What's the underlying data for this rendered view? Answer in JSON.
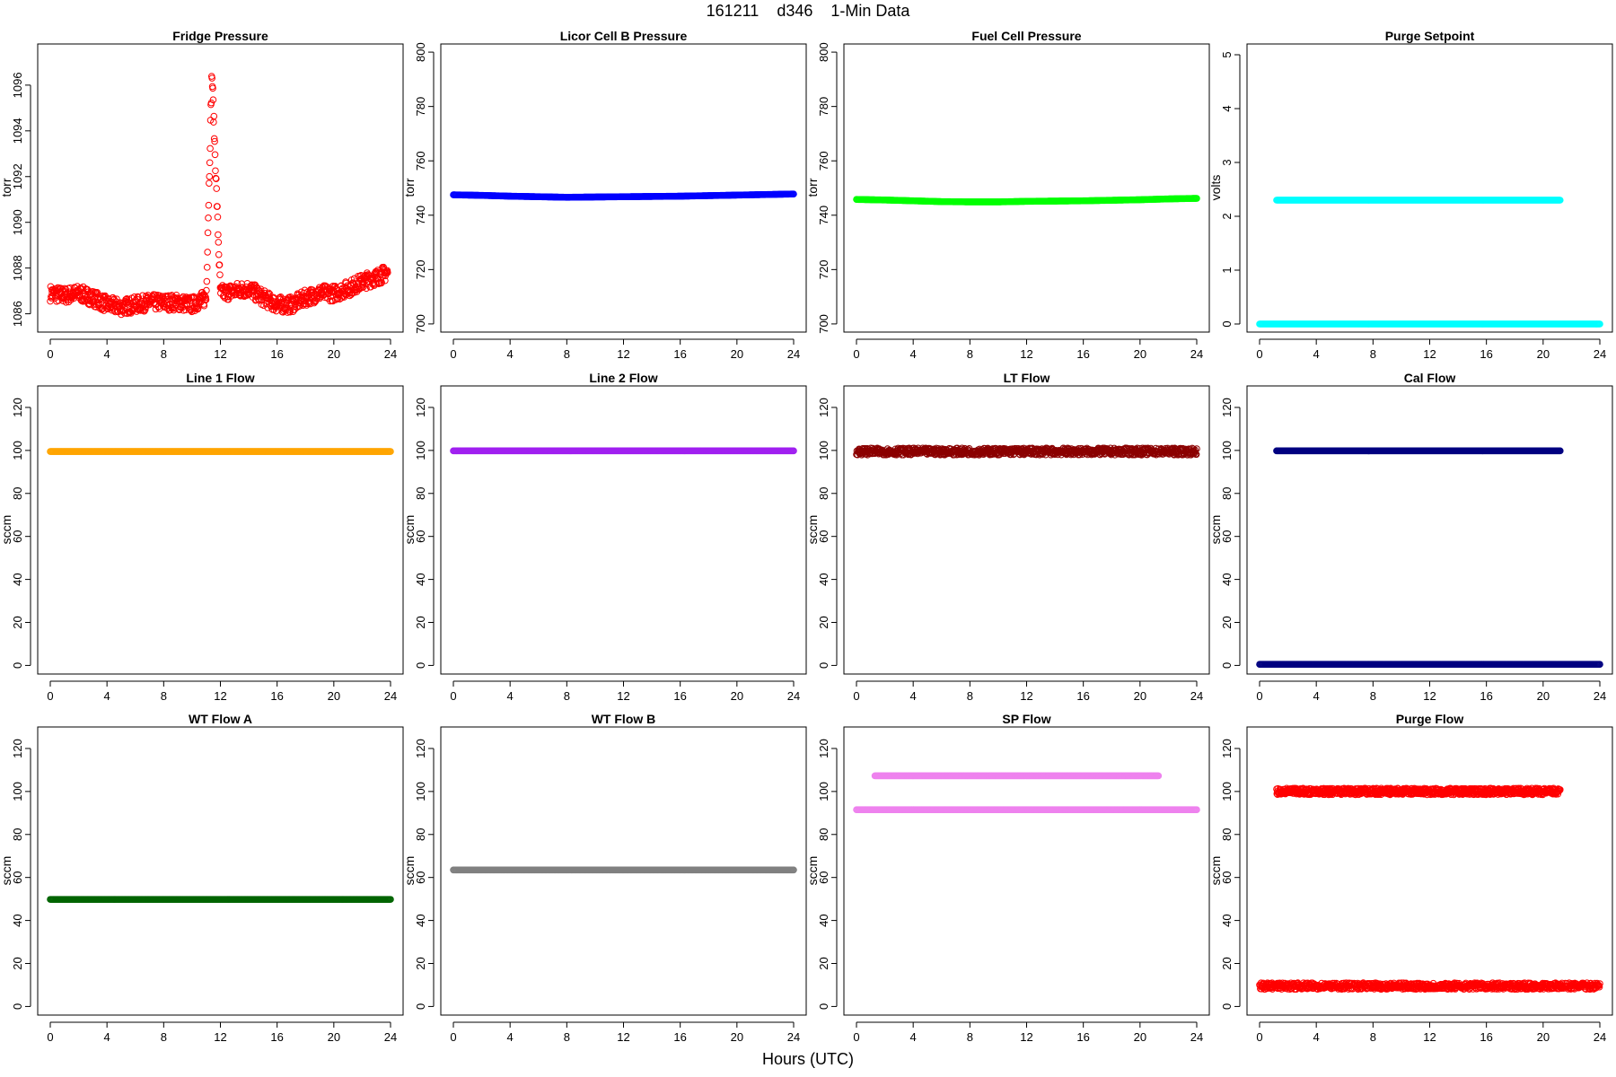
{
  "title": "161211    d346    1-Min Data",
  "xlabel": "Hours (UTC)",
  "chart_data": [
    {
      "type": "scatter",
      "title": "Fridge Pressure",
      "ylabel": "torr",
      "color": "#ff0000",
      "xlim": [
        0,
        24
      ],
      "ylim": [
        1085.2,
        1097.8
      ],
      "xticks": [
        0,
        4,
        8,
        12,
        16,
        20,
        24
      ],
      "yticks": [
        1086,
        1088,
        1090,
        1092,
        1094,
        1096
      ],
      "series": [
        {
          "x": [
            0,
            1,
            2,
            3,
            4,
            5,
            6,
            7,
            8,
            9,
            10,
            11,
            11.4,
            12,
            13,
            14,
            15,
            16,
            17,
            18,
            19,
            20,
            21,
            22,
            23,
            23.8
          ],
          "y": [
            1086.9,
            1086.8,
            1086.9,
            1086.7,
            1086.4,
            1086.3,
            1086.4,
            1086.5,
            1086.5,
            1086.5,
            1086.4,
            1086.7,
            1096.6,
            1086.9,
            1087.0,
            1087.1,
            1086.7,
            1086.4,
            1086.4,
            1086.7,
            1086.9,
            1086.9,
            1087.1,
            1087.4,
            1087.6,
            1087.8
          ]
        }
      ]
    },
    {
      "type": "scatter",
      "title": "Licor Cell B Pressure",
      "ylabel": "torr",
      "color": "#0000ff",
      "xlim": [
        0,
        24
      ],
      "ylim": [
        697,
        803
      ],
      "xticks": [
        0,
        4,
        8,
        12,
        16,
        20,
        24
      ],
      "yticks": [
        700,
        720,
        740,
        760,
        780,
        800
      ],
      "series": [
        {
          "x": [
            0,
            2,
            4,
            6,
            8,
            10,
            12,
            14,
            16,
            18,
            20,
            22,
            24
          ],
          "y": [
            747.5,
            747.3,
            747.0,
            746.8,
            746.6,
            746.7,
            746.8,
            746.9,
            747.0,
            747.2,
            747.4,
            747.6,
            747.8
          ]
        }
      ]
    },
    {
      "type": "scatter",
      "title": "Fuel Cell Pressure",
      "ylabel": "torr",
      "color": "#00ff00",
      "xlim": [
        0,
        24
      ],
      "ylim": [
        697,
        803
      ],
      "xticks": [
        0,
        4,
        8,
        12,
        16,
        20,
        24
      ],
      "yticks": [
        700,
        720,
        740,
        760,
        780,
        800
      ],
      "series": [
        {
          "x": [
            0,
            2,
            4,
            6,
            8,
            10,
            12,
            14,
            16,
            18,
            20,
            22,
            24
          ],
          "y": [
            745.8,
            745.6,
            745.3,
            745.0,
            744.9,
            744.9,
            745.1,
            745.2,
            745.3,
            745.5,
            745.7,
            746.0,
            746.2
          ]
        }
      ]
    },
    {
      "type": "scatter",
      "title": "Purge Setpoint",
      "ylabel": "volts",
      "color": "#00ffff",
      "xlim": [
        0,
        24
      ],
      "ylim": [
        -0.15,
        5.2
      ],
      "xticks": [
        0,
        4,
        8,
        12,
        16,
        20,
        24
      ],
      "yticks": [
        0,
        1,
        2,
        3,
        4,
        5
      ],
      "series": [
        {
          "x": [
            0,
            24
          ],
          "y": [
            0,
            0
          ]
        },
        {
          "x": [
            1.2,
            6.1,
            11.2,
            16.2,
            21.2
          ],
          "y": [
            2.3,
            2.3,
            2.3,
            2.3,
            2.3
          ]
        }
      ]
    },
    {
      "type": "scatter",
      "title": "Line 1 Flow",
      "ylabel": "sccm",
      "color": "#ffa500",
      "xlim": [
        0,
        24
      ],
      "ylim": [
        -4,
        130
      ],
      "xticks": [
        0,
        4,
        8,
        12,
        16,
        20,
        24
      ],
      "yticks": [
        0,
        20,
        40,
        60,
        80,
        100,
        120
      ],
      "series": [
        {
          "x": [
            0,
            24
          ],
          "y": [
            99.5,
            99.5
          ]
        }
      ]
    },
    {
      "type": "scatter",
      "title": "Line 2 Flow",
      "ylabel": "sccm",
      "color": "#a020f0",
      "xlim": [
        0,
        24
      ],
      "ylim": [
        -4,
        130
      ],
      "xticks": [
        0,
        4,
        8,
        12,
        16,
        20,
        24
      ],
      "yticks": [
        0,
        20,
        40,
        60,
        80,
        100,
        120
      ],
      "series": [
        {
          "x": [
            0,
            24
          ],
          "y": [
            99.8,
            99.8
          ]
        }
      ]
    },
    {
      "type": "scatter",
      "title": "LT Flow",
      "ylabel": "sccm",
      "color": "#8b0000",
      "xlim": [
        0,
        24
      ],
      "ylim": [
        -4,
        130
      ],
      "xticks": [
        0,
        4,
        8,
        12,
        16,
        20,
        24
      ],
      "yticks": [
        0,
        20,
        40,
        60,
        80,
        100,
        120
      ],
      "series": [
        {
          "x": [
            0,
            24
          ],
          "y": [
            99.5,
            99.5
          ]
        }
      ]
    },
    {
      "type": "scatter",
      "title": "Cal Flow",
      "ylabel": "sccm",
      "color": "#000080",
      "xlim": [
        0,
        24
      ],
      "ylim": [
        -4,
        130
      ],
      "xticks": [
        0,
        4,
        8,
        12,
        16,
        20,
        24
      ],
      "yticks": [
        0,
        20,
        40,
        60,
        80,
        100,
        120
      ],
      "series": [
        {
          "x": [
            0,
            24
          ],
          "y": [
            0.5,
            0.5
          ]
        },
        {
          "x": [
            1.2,
            6.2,
            11.2,
            16.3,
            21.2
          ],
          "y": [
            99.8,
            99.8,
            99.8,
            99.8,
            99.8
          ]
        }
      ]
    },
    {
      "type": "scatter",
      "title": "WT Flow A",
      "ylabel": "sccm",
      "color": "#006400",
      "xlim": [
        0,
        24
      ],
      "ylim": [
        -4,
        130
      ],
      "xticks": [
        0,
        4,
        8,
        12,
        16,
        20,
        24
      ],
      "yticks": [
        0,
        20,
        40,
        60,
        80,
        100,
        120
      ],
      "series": [
        {
          "x": [
            0,
            24
          ],
          "y": [
            49.8,
            49.8
          ]
        }
      ]
    },
    {
      "type": "scatter",
      "title": "WT Flow B",
      "ylabel": "sccm",
      "color": "#808080",
      "xlim": [
        0,
        24
      ],
      "ylim": [
        -4,
        130
      ],
      "xticks": [
        0,
        4,
        8,
        12,
        16,
        20,
        24
      ],
      "yticks": [
        0,
        20,
        40,
        60,
        80,
        100,
        120
      ],
      "series": [
        {
          "x": [
            0,
            24
          ],
          "y": [
            63.5,
            63.5
          ]
        }
      ]
    },
    {
      "type": "scatter",
      "title": "SP Flow",
      "ylabel": "sccm",
      "color": "#ee82ee",
      "xlim": [
        0,
        24
      ],
      "ylim": [
        -4,
        130
      ],
      "xticks": [
        0,
        4,
        8,
        12,
        16,
        20,
        24
      ],
      "yticks": [
        0,
        20,
        40,
        60,
        80,
        100,
        120
      ],
      "series": [
        {
          "x": [
            0,
            24
          ],
          "y": [
            91.5,
            91.5
          ]
        },
        {
          "x": [
            1.3,
            6.3,
            11.3,
            16.3,
            21.3
          ],
          "y": [
            107.3,
            107.3,
            107.3,
            107.3,
            107.3
          ]
        }
      ]
    },
    {
      "type": "scatter",
      "title": "Purge Flow",
      "ylabel": "sccm",
      "color": "#ff0000",
      "xlim": [
        0,
        24
      ],
      "ylim": [
        -4,
        130
      ],
      "xticks": [
        0,
        4,
        8,
        12,
        16,
        20,
        24
      ],
      "yticks": [
        0,
        20,
        40,
        60,
        80,
        100,
        120
      ],
      "series": [
        {
          "x": [
            0,
            24
          ],
          "y": [
            9.5,
            9.5
          ]
        },
        {
          "x": [
            1.2,
            6.2,
            11.2,
            16.2,
            21.2
          ],
          "y": [
            100,
            100,
            100,
            100,
            100
          ]
        }
      ]
    }
  ]
}
